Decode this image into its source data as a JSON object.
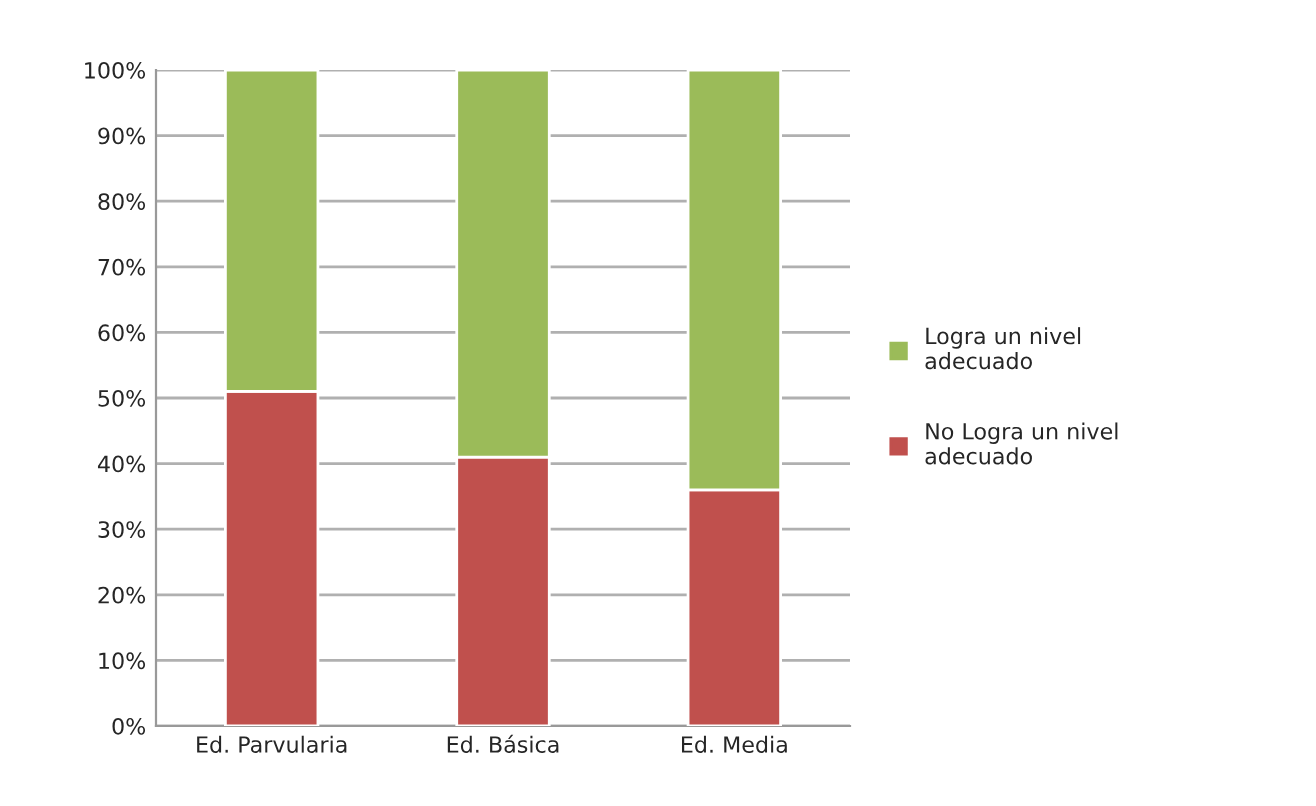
{
  "chart_data": {
    "type": "bar",
    "stacked": true,
    "categories": [
      "Ed. Parvularia",
      "Ed. Básica",
      "Ed. Media"
    ],
    "series": [
      {
        "name": "No Logra un nivel adecuado",
        "color": "#c0504d",
        "values": [
          51,
          41,
          36
        ]
      },
      {
        "name": "Logra un nivel adecuado",
        "color": "#9bbb59",
        "values": [
          49,
          59,
          64
        ]
      }
    ],
    "ylim": [
      0,
      100
    ],
    "yticks": [
      {
        "value": 0,
        "label": "0%"
      },
      {
        "value": 10,
        "label": "10%"
      },
      {
        "value": 20,
        "label": "20%"
      },
      {
        "value": 30,
        "label": "30%"
      },
      {
        "value": 40,
        "label": "40%"
      },
      {
        "value": 50,
        "label": "50%"
      },
      {
        "value": 60,
        "label": "60%"
      },
      {
        "value": 70,
        "label": "70%"
      },
      {
        "value": 80,
        "label": "80%"
      },
      {
        "value": 90,
        "label": "90%"
      },
      {
        "value": 100,
        "label": "100%"
      }
    ],
    "grid": "y",
    "legend": "right"
  }
}
